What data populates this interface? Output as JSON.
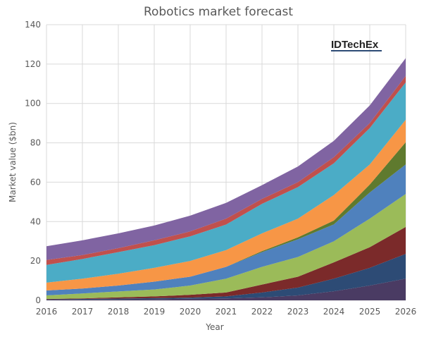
{
  "chart_data": {
    "type": "area",
    "stacked": true,
    "title": "Robotics market forecast",
    "xlabel": "Year",
    "ylabel": "Market value ($bn)",
    "x": [
      2016,
      2017,
      2018,
      2019,
      2020,
      2021,
      2022,
      2023,
      2024,
      2025,
      2026
    ],
    "xlim": [
      2016,
      2026
    ],
    "ylim": [
      0,
      140
    ],
    "yticks": [
      0,
      20,
      40,
      60,
      80,
      100,
      120,
      140
    ],
    "grid": true,
    "legend": "none",
    "logo_text": "IDTechEx",
    "series": [
      {
        "color": "#4a3b63",
        "values": [
          0.3,
          0.4,
          0.5,
          0.6,
          0.8,
          1,
          1.5,
          2.5,
          4.6,
          7.5,
          11
        ]
      },
      {
        "color": "#2d4b75",
        "values": [
          0.2,
          0.3,
          0.4,
          0.5,
          0.6,
          1,
          2.5,
          4,
          6.4,
          9,
          12.6
        ]
      },
      {
        "color": "#7b2a2a",
        "values": [
          0.2,
          0.3,
          0.6,
          0.9,
          1.4,
          2,
          4,
          5.5,
          8.3,
          10.5,
          13.7
        ]
      },
      {
        "color": "#9bbb59",
        "values": [
          1.8,
          2.5,
          3,
          3.5,
          4.7,
          7,
          9,
          10,
          10.7,
          14.5,
          16.7
        ]
      },
      {
        "color": "#4f81bd",
        "values": [
          2.5,
          2.5,
          3,
          4,
          4.5,
          6,
          7.5,
          9,
          8.6,
          13.3,
          15
        ]
      },
      {
        "color": "#5f7a2e",
        "values": [
          0,
          0,
          0,
          0,
          0,
          0,
          0.5,
          1,
          1.9,
          4,
          11.3
        ]
      },
      {
        "color": "#f79646",
        "values": [
          4,
          5,
          6,
          7,
          8,
          8.5,
          9,
          9.5,
          13,
          10.2,
          11.4
        ]
      },
      {
        "color": "#4bacc6",
        "values": [
          9,
          10,
          11,
          11.5,
          12.5,
          13,
          15,
          16,
          16.1,
          18.5,
          19
        ]
      },
      {
        "color": "#c0504d",
        "values": [
          2.5,
          2,
          2,
          2.5,
          2.5,
          3,
          2.5,
          2.5,
          3.1,
          2.5,
          3.3
        ]
      },
      {
        "color": "#8064a2",
        "values": [
          7,
          7.5,
          7.5,
          7.5,
          8,
          8,
          7,
          8,
          8.3,
          9,
          9
        ]
      }
    ]
  }
}
